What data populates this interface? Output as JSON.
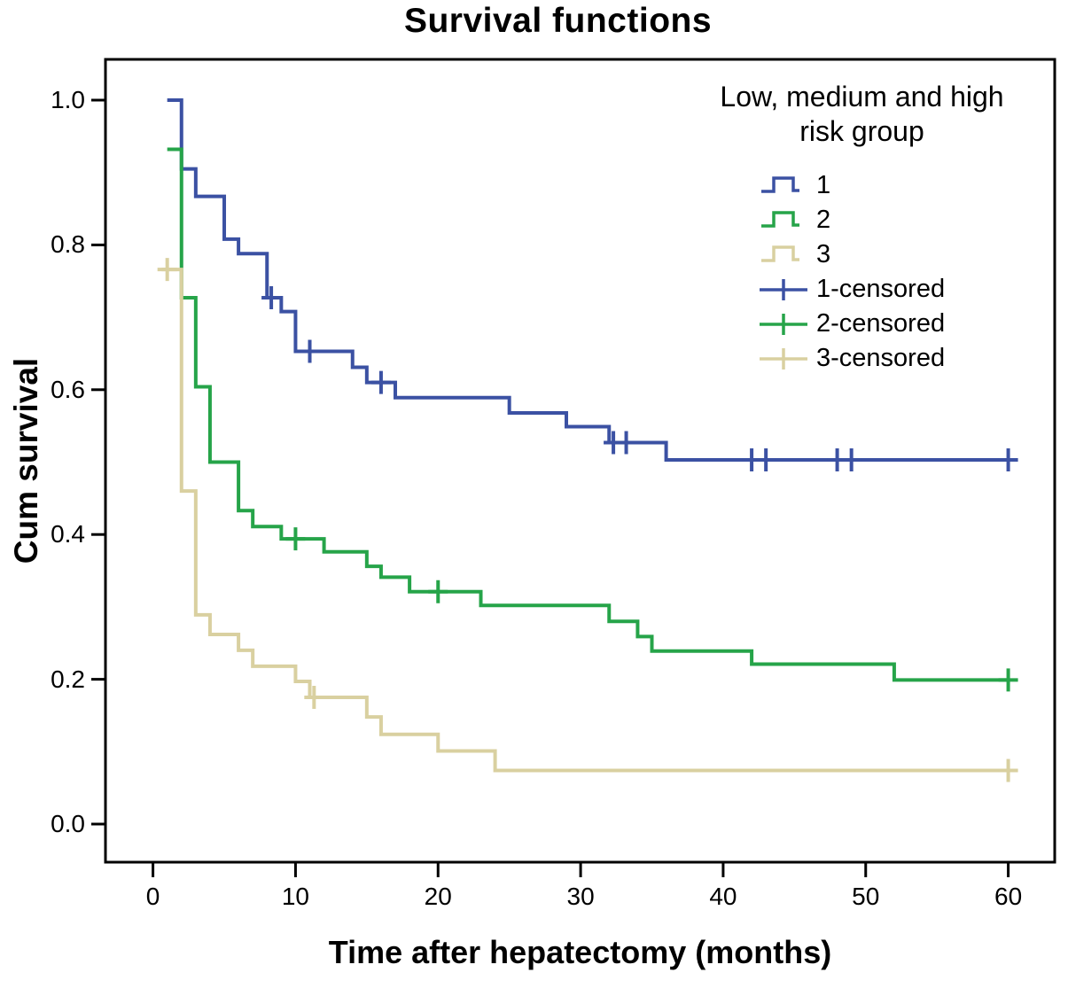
{
  "title": "Survival functions",
  "x_axis": {
    "label": "Time after hepatectomy (months)",
    "ticks": [
      "0",
      "10",
      "20",
      "30",
      "40",
      "50",
      "60"
    ],
    "tick_values": [
      0,
      10,
      20,
      30,
      40,
      50,
      60
    ]
  },
  "y_axis": {
    "label": "Cum survival",
    "ticks": [
      "1.0",
      "0.8",
      "0.6",
      "0.4",
      "0.2",
      "0.0"
    ],
    "tick_values": [
      1.0,
      0.8,
      0.6,
      0.4,
      0.2,
      0.0
    ]
  },
  "legend": {
    "title_lines": [
      "Low, medium and high",
      "risk group"
    ],
    "items": [
      {
        "label": "1",
        "type": "step",
        "color": "#3B51A3"
      },
      {
        "label": "2",
        "type": "step",
        "color": "#26A449"
      },
      {
        "label": "3",
        "type": "step",
        "color": "#D9D0A0"
      },
      {
        "label": "1-censored",
        "type": "censor",
        "color": "#3B51A3"
      },
      {
        "label": "2-censored",
        "type": "censor",
        "color": "#26A449"
      },
      {
        "label": "3-censored",
        "type": "censor",
        "color": "#D9D0A0"
      }
    ]
  },
  "chart_data": {
    "type": "line",
    "subtype": "kaplan-meier-step-function",
    "title": "Survival functions",
    "xlabel": "Time after hepatectomy (months)",
    "ylabel": "Cum survival",
    "xlim": [
      -3.3,
      63.2
    ],
    "ylim": [
      -0.053,
      1.056
    ],
    "grid": false,
    "legend_title": "Low, medium and high risk group",
    "legend_position": "top-right-inside",
    "frame_color": "#000000",
    "series": [
      {
        "name": "1",
        "color": "#3B51A3",
        "steps": [
          [
            1,
            1.0
          ],
          [
            2,
            0.905
          ],
          [
            3,
            0.867
          ],
          [
            5,
            0.808
          ],
          [
            6,
            0.788
          ],
          [
            8,
            0.727
          ],
          [
            9,
            0.708
          ],
          [
            10,
            0.653
          ],
          [
            14,
            0.631
          ],
          [
            15,
            0.61
          ],
          [
            17,
            0.589
          ],
          [
            25,
            0.568
          ],
          [
            29,
            0.549
          ],
          [
            32,
            0.527
          ],
          [
            36,
            0.503
          ],
          [
            60,
            0.503
          ]
        ],
        "censored": [
          [
            8.3,
            0.727
          ],
          [
            11,
            0.653
          ],
          [
            16,
            0.61
          ],
          [
            32.3,
            0.527
          ],
          [
            33.2,
            0.527
          ],
          [
            42,
            0.503
          ],
          [
            43,
            0.503
          ],
          [
            48,
            0.503
          ],
          [
            49,
            0.503
          ],
          [
            60,
            0.503
          ]
        ]
      },
      {
        "name": "2",
        "color": "#26A449",
        "steps": [
          [
            1,
            0.932
          ],
          [
            2,
            0.727
          ],
          [
            3,
            0.604
          ],
          [
            4,
            0.5
          ],
          [
            6,
            0.433
          ],
          [
            7,
            0.411
          ],
          [
            9,
            0.394
          ],
          [
            12,
            0.376
          ],
          [
            15,
            0.356
          ],
          [
            16,
            0.341
          ],
          [
            18,
            0.321
          ],
          [
            23,
            0.302
          ],
          [
            32,
            0.28
          ],
          [
            34,
            0.259
          ],
          [
            35,
            0.239
          ],
          [
            42,
            0.221
          ],
          [
            52,
            0.199
          ],
          [
            60,
            0.199
          ]
        ],
        "censored": [
          [
            10,
            0.394
          ],
          [
            20,
            0.321
          ],
          [
            60,
            0.199
          ]
        ]
      },
      {
        "name": "3",
        "color": "#D9D0A0",
        "steps": [
          [
            0.6,
            0.766
          ],
          [
            2,
            0.46
          ],
          [
            3,
            0.289
          ],
          [
            4,
            0.262
          ],
          [
            6,
            0.24
          ],
          [
            7,
            0.218
          ],
          [
            10,
            0.197
          ],
          [
            11,
            0.175
          ],
          [
            15,
            0.148
          ],
          [
            16,
            0.124
          ],
          [
            20,
            0.101
          ],
          [
            24,
            0.074
          ],
          [
            60,
            0.074
          ]
        ],
        "censored": [
          [
            1,
            0.766
          ],
          [
            11.3,
            0.175
          ],
          [
            60,
            0.074
          ]
        ]
      }
    ]
  }
}
